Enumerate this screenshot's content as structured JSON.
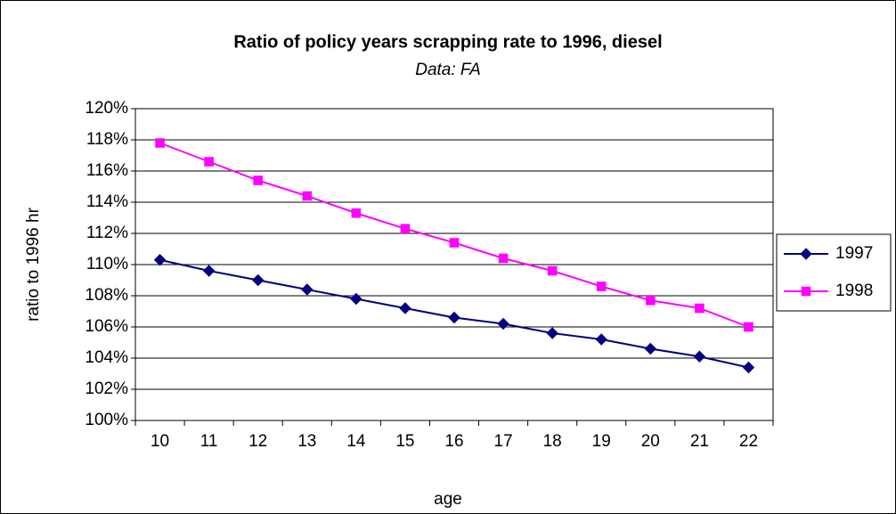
{
  "chart_data": {
    "type": "line",
    "title": "Ratio of policy years scrapping rate to 1996, diesel",
    "subtitle": "Data: FA",
    "x_label": "age",
    "y_label": "ratio to 1996 hr",
    "categories": [
      "10",
      "11",
      "12",
      "13",
      "14",
      "15",
      "16",
      "17",
      "18",
      "19",
      "20",
      "21",
      "22"
    ],
    "series": [
      {
        "name": "1997",
        "color": "#000080",
        "marker": "diamond",
        "values": [
          110.3,
          109.6,
          109.0,
          108.4,
          107.8,
          107.2,
          106.6,
          106.2,
          105.6,
          105.2,
          104.6,
          104.1,
          103.4
        ]
      },
      {
        "name": "1998",
        "color": "#ff00ff",
        "marker": "square",
        "values": [
          117.8,
          116.6,
          115.4,
          114.4,
          113.3,
          112.3,
          111.4,
          110.4,
          109.6,
          108.6,
          107.7,
          107.2,
          106.0
        ]
      }
    ],
    "ylim": [
      100,
      120
    ],
    "yticks": [
      {
        "value": 100,
        "label": "100%"
      },
      {
        "value": 102,
        "label": "102%"
      },
      {
        "value": 104,
        "label": "104%"
      },
      {
        "value": 106,
        "label": "106%"
      },
      {
        "value": 108,
        "label": "108%"
      },
      {
        "value": 110,
        "label": "110%"
      },
      {
        "value": 112,
        "label": "112%"
      },
      {
        "value": 114,
        "label": "114%"
      },
      {
        "value": 116,
        "label": "116%"
      },
      {
        "value": 118,
        "label": "118%"
      },
      {
        "value": 120,
        "label": "120%"
      }
    ],
    "grid": true,
    "legend": "right"
  }
}
